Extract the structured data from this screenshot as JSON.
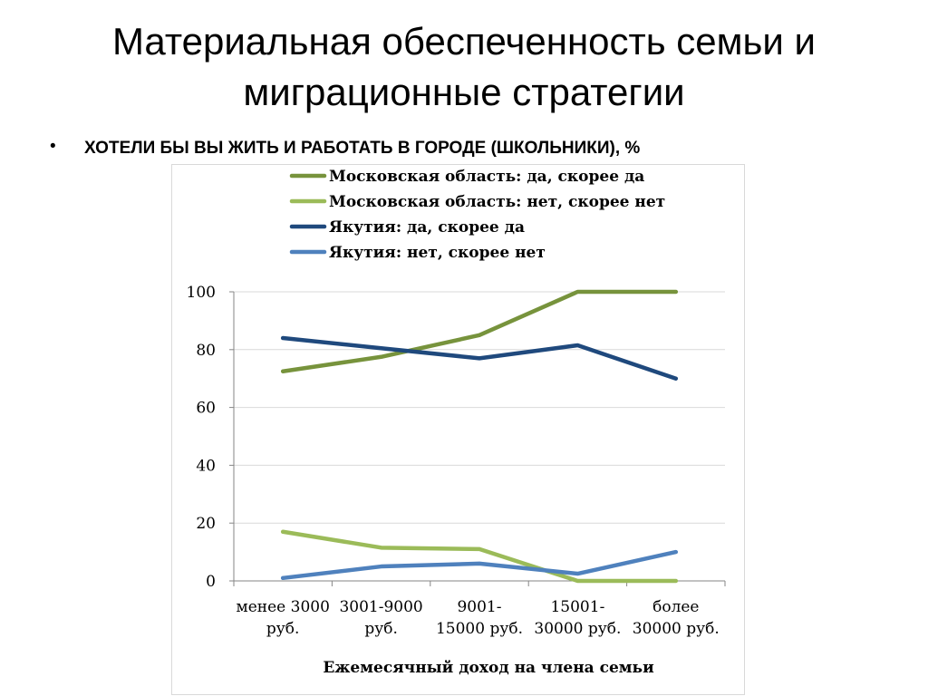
{
  "slide": {
    "title_line1": "Материальная обеспеченность семьи и",
    "title_line2": "миграционные стратегии",
    "bullet": "•",
    "question": "ХОТЕЛИ БЫ ВЫ ЖИТЬ И РАБОТАТЬ В ГОРОДЕ (ШКОЛЬНИКИ), %"
  },
  "chart_data": {
    "type": "line",
    "title": "",
    "xlabel": "Ежемесячный доход на члена семьи",
    "ylabel": "",
    "ylim": [
      0,
      100
    ],
    "yticks": [
      0,
      20,
      40,
      60,
      80,
      100
    ],
    "grid": true,
    "legend_position": "top",
    "categories": [
      [
        "менее 3000",
        "руб."
      ],
      [
        "3001-9000",
        "руб."
      ],
      [
        "9001-",
        "15000 руб."
      ],
      [
        "15001-",
        "30000 руб."
      ],
      [
        "более",
        "30000 руб."
      ]
    ],
    "series": [
      {
        "name": "Московская область: да, скорее да",
        "color": "#77933c",
        "values": [
          72.5,
          77.5,
          85,
          100,
          100
        ]
      },
      {
        "name": "Московская область: нет, скорее нет",
        "color": "#9bbb59",
        "values": [
          17,
          11.5,
          11,
          0,
          0
        ]
      },
      {
        "name": "Якутия: да, скорее да",
        "color": "#1f497d",
        "values": [
          84,
          80.5,
          77,
          81.5,
          70
        ]
      },
      {
        "name": "Якутия: нет, скорее нет",
        "color": "#4f81bd",
        "values": [
          1,
          5,
          6,
          2.5,
          10
        ]
      }
    ]
  }
}
